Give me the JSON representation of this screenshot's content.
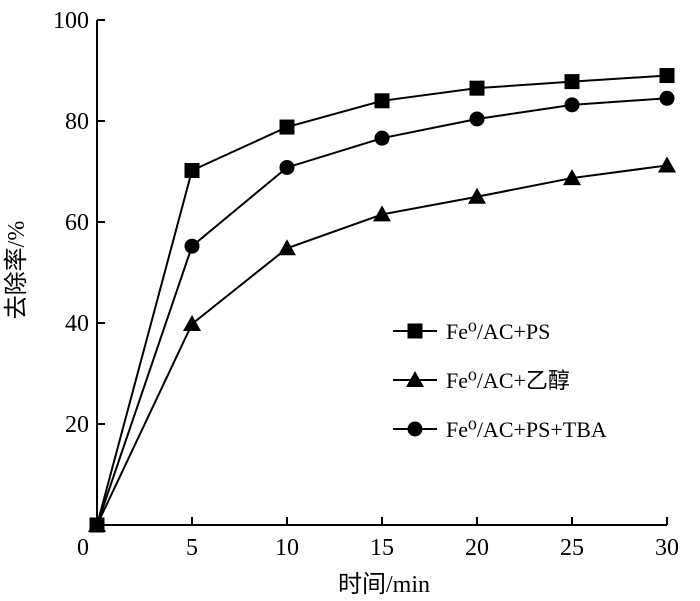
{
  "chart_data": {
    "type": "line",
    "title": "",
    "xlabel": "时间/min",
    "ylabel": "去除率/%",
    "xlim": [
      0,
      30
    ],
    "ylim": [
      0,
      100
    ],
    "x_ticks": [
      0,
      5,
      10,
      15,
      20,
      25,
      30
    ],
    "y_ticks": [
      20,
      40,
      60,
      80,
      100
    ],
    "grid": false,
    "legend_position": "center-right",
    "series": [
      {
        "name": "Fe⁰/AC+PS",
        "marker": "square",
        "x": [
          0,
          5,
          10,
          15,
          20,
          25,
          30
        ],
        "y": [
          0,
          70.2,
          78.8,
          84.0,
          86.5,
          87.8,
          89.0
        ]
      },
      {
        "name": "Fe⁰/AC+乙醇",
        "marker": "triangle",
        "x": [
          0,
          5,
          10,
          15,
          20,
          25,
          30
        ],
        "y": [
          0,
          39.8,
          54.8,
          61.5,
          65.0,
          68.7,
          71.2
        ]
      },
      {
        "name": "Fe⁰/AC+PS+TBA",
        "marker": "circle",
        "x": [
          0,
          5,
          10,
          15,
          20,
          25,
          30
        ],
        "y": [
          0,
          55.2,
          70.8,
          76.6,
          80.4,
          83.2,
          84.5
        ]
      }
    ]
  }
}
